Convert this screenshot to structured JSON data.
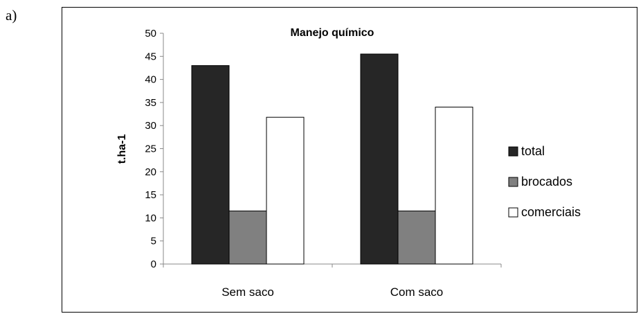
{
  "panel_label": "a)",
  "chart_data": {
    "type": "bar",
    "title": "Manejo químico",
    "xlabel": "",
    "ylabel": "t.ha-1",
    "ylim": [
      0,
      50
    ],
    "yticks": [
      0,
      5,
      10,
      15,
      20,
      25,
      30,
      35,
      40,
      45,
      50
    ],
    "categories": [
      "Sem saco",
      "Com saco"
    ],
    "series": [
      {
        "name": "total",
        "values": [
          43.0,
          45.5
        ],
        "color": "#262626"
      },
      {
        "name": "brocados",
        "values": [
          11.5,
          11.5
        ],
        "color": "#808080"
      },
      {
        "name": "comerciais",
        "values": [
          31.8,
          34.0
        ],
        "color": "#ffffff"
      }
    ],
    "grid": false,
    "legend_position": "right"
  }
}
